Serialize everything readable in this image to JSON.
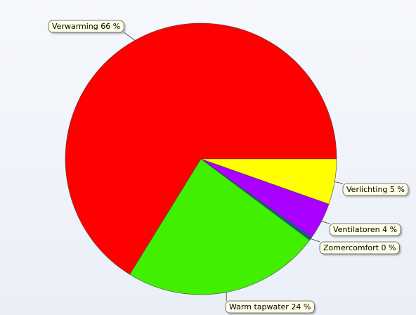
{
  "chart_data": {
    "type": "pie",
    "categories": [
      "Verwarming",
      "Warm tapwater",
      "Zomercomfort",
      "Ventilatoren",
      "Verlichting"
    ],
    "values": [
      66.2,
      23.6,
      0.4,
      4.4,
      5.4
    ],
    "value_labels": [
      "66 %",
      "24 %",
      "0 %",
      "4 %",
      "5 %"
    ],
    "colors": [
      "#ff0000",
      "#40f000",
      "#006a80",
      "#aa00ff",
      "#ffff00"
    ]
  }
}
